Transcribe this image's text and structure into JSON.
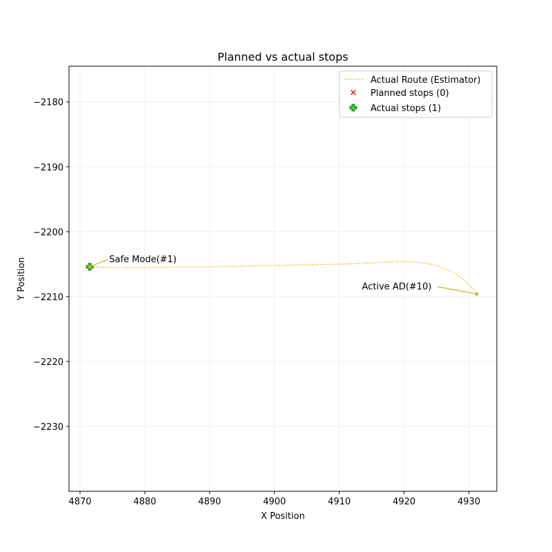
{
  "chart_data": {
    "type": "line",
    "title": "Planned vs actual stops",
    "xlabel": "X Position",
    "ylabel": "Y Position",
    "xlim": [
      4868.3,
      4934.3
    ],
    "ylim": [
      -2240.0,
      -2174.5
    ],
    "xticks": [
      4870,
      4880,
      4890,
      4900,
      4910,
      4920,
      4930
    ],
    "yticks": [
      -2180,
      -2190,
      -2200,
      -2210,
      -2220,
      -2230
    ],
    "xtick_labels": [
      "4870",
      "4880",
      "4890",
      "4900",
      "4910",
      "4920",
      "4930"
    ],
    "ytick_labels": [
      "−2180",
      "−2190",
      "−2200",
      "−2210",
      "−2220",
      "−2230"
    ],
    "grid": true,
    "legend_position": "top-right",
    "series": [
      {
        "name": "Actual Route (Estimator)",
        "style": "dotted",
        "color": "#ffa500",
        "x": [
          4871.3,
          4875,
          4880,
          4890,
          4900,
          4910,
          4915,
          4920,
          4924,
          4927,
          4929,
          4930.5,
          4931.2
        ],
        "y": [
          -2205.4,
          -2205.5,
          -2205.5,
          -2205.4,
          -2205.2,
          -2205.0,
          -2204.8,
          -2204.6,
          -2205.0,
          -2206.0,
          -2207.3,
          -2208.6,
          -2209.6
        ]
      },
      {
        "name": "Planned stops (0)",
        "marker": "x",
        "color": "#ff0000",
        "x": [],
        "y": []
      },
      {
        "name": "Actual stops (1)",
        "marker": "plus",
        "color": "#32cd32",
        "x": [
          4871.5
        ],
        "y": [
          -2205.4
        ]
      }
    ],
    "annotations": [
      {
        "text": "Safe Mode(#1)",
        "x": 4871.5,
        "y": -2205.4,
        "text_x": 4874.5,
        "text_y": -2204.7,
        "color": "#bcbd22"
      },
      {
        "text": "Active AD(#10)",
        "x": 4931.2,
        "y": -2209.6,
        "text_x": 4913.5,
        "text_y": -2208.9,
        "color": "#bcbd22"
      }
    ]
  }
}
